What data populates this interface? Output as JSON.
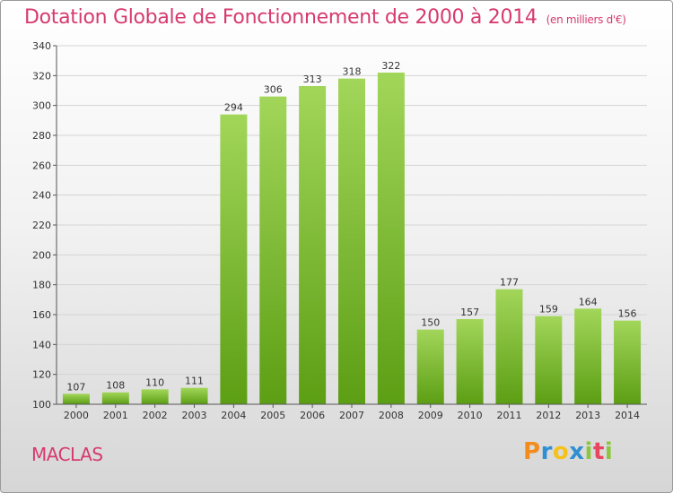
{
  "header": {
    "title": "Dotation Globale de Fonctionnement de 2000 à 2014",
    "unit": "(en milliers d'€)"
  },
  "commune": "MACLAS",
  "logo": {
    "letters": [
      "P",
      "r",
      "o",
      "x",
      "i",
      "t",
      "i"
    ],
    "colors": [
      "#f28c1e",
      "#2f8fd2",
      "#f5c21a",
      "#2f8fd2",
      "#8cc63f",
      "#e8455f",
      "#8cc63f"
    ]
  },
  "colors": {
    "bar_light": "#a2d65a",
    "bar_dark": "#5c9e14",
    "title": "#d63a6e"
  },
  "chart_data": {
    "type": "bar",
    "categories": [
      "2000",
      "2001",
      "2002",
      "2003",
      "2004",
      "2005",
      "2006",
      "2007",
      "2008",
      "2009",
      "2010",
      "2011",
      "2012",
      "2013",
      "2014"
    ],
    "values": [
      107,
      108,
      110,
      111,
      294,
      306,
      313,
      318,
      322,
      150,
      157,
      177,
      159,
      164,
      156
    ],
    "ylim": [
      100,
      340
    ],
    "yticks": [
      100,
      120,
      140,
      160,
      180,
      200,
      220,
      240,
      260,
      280,
      300,
      320,
      340
    ],
    "grid": true
  }
}
